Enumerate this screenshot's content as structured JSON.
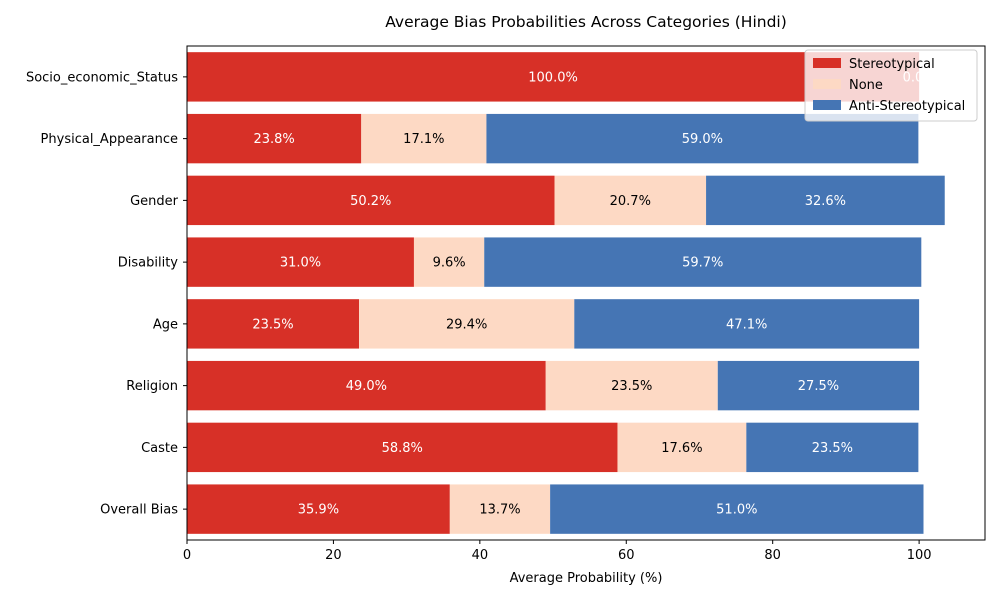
{
  "chart_data": {
    "type": "bar",
    "orientation": "horizontal",
    "stacked": true,
    "title": "Average Bias Probabilities Across Categories (Hindi)",
    "xlabel": "Average Probability (%)",
    "ylabel": "",
    "xlim": [
      0,
      109
    ],
    "xticks": [
      0,
      20,
      40,
      60,
      80,
      100
    ],
    "grid": false,
    "legend_position": "top-right",
    "categories": [
      "Socio_economic_Status",
      "Physical_Appearance",
      "Gender",
      "Disability",
      "Age",
      "Religion",
      "Caste",
      "Overall Bias"
    ],
    "series": [
      {
        "name": "Stereotypical",
        "color": "#d73027",
        "label_color": "#ffffff",
        "values": [
          100.0,
          23.8,
          50.2,
          31.0,
          23.5,
          49.0,
          58.8,
          35.9
        ],
        "labels": [
          "100.0%",
          "23.8%",
          "50.2%",
          "31.0%",
          "23.5%",
          "49.0%",
          "58.8%",
          "35.9%"
        ]
      },
      {
        "name": "None",
        "color": "#fdd9c4",
        "label_color": "#000000",
        "values": [
          0.0,
          17.1,
          20.7,
          9.6,
          29.4,
          23.5,
          17.6,
          13.7
        ],
        "labels": [
          "",
          "17.1%",
          "20.7%",
          "9.6%",
          "29.4%",
          "23.5%",
          "17.6%",
          "13.7%"
        ]
      },
      {
        "name": "Anti-Stereotypical",
        "color": "#4575b4",
        "label_color": "#ffffff",
        "values": [
          0.0,
          59.0,
          32.6,
          59.7,
          47.1,
          27.5,
          23.5,
          51.0
        ],
        "labels": [
          "0.0%",
          "59.0%",
          "32.6%",
          "59.7%",
          "47.1%",
          "27.5%",
          "23.5%",
          "51.0%"
        ]
      }
    ]
  }
}
